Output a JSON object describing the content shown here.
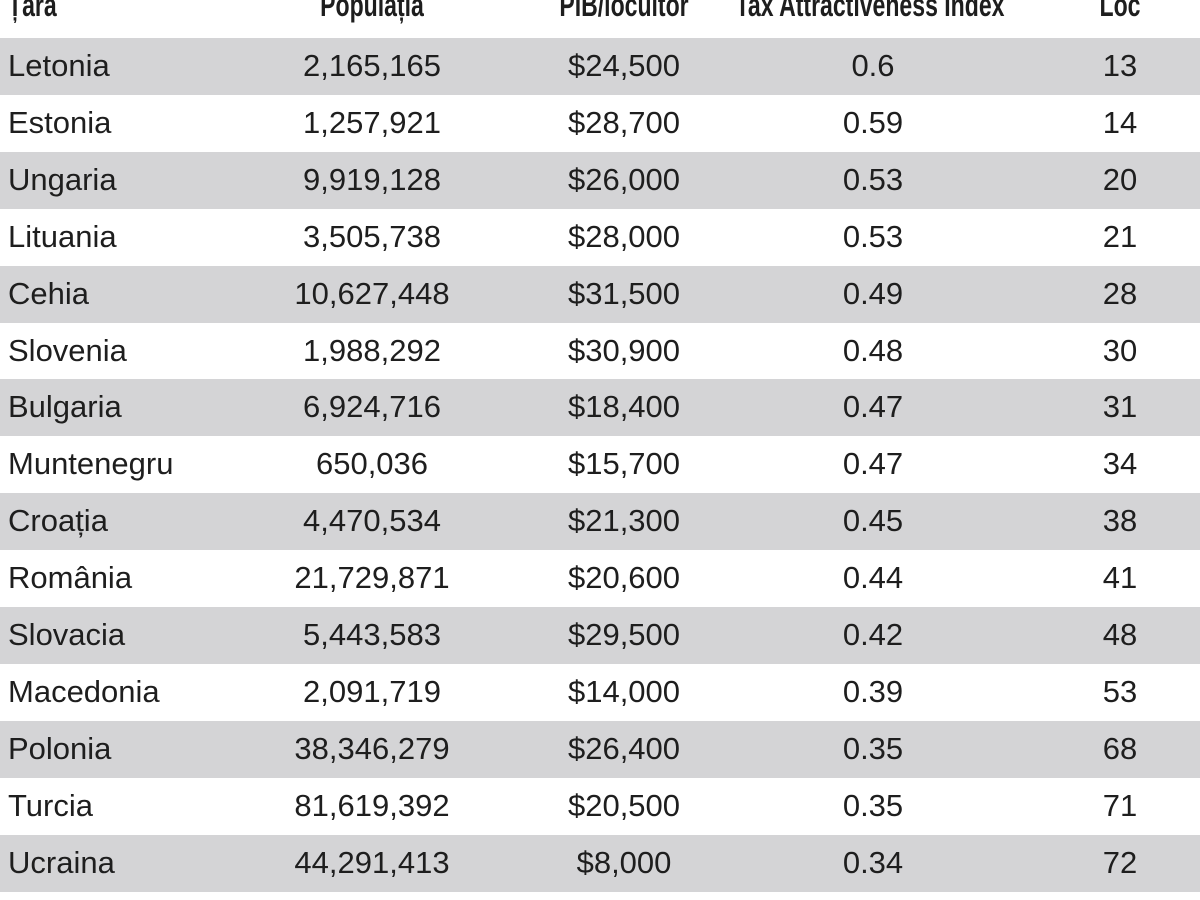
{
  "table": {
    "headers": [
      "Țara",
      "Populația",
      "PIB/locuitor",
      "Tax Attractiveness Index",
      "Loc"
    ],
    "rows": [
      [
        "Letonia",
        "2,165,165",
        "$24,500",
        "0.6",
        "13"
      ],
      [
        "Estonia",
        "1,257,921",
        "$28,700",
        "0.59",
        "14"
      ],
      [
        "Ungaria",
        "9,919,128",
        "$26,000",
        "0.53",
        "20"
      ],
      [
        "Lituania",
        "3,505,738",
        "$28,000",
        "0.53",
        "21"
      ],
      [
        "Cehia",
        "10,627,448",
        "$31,500",
        "0.49",
        "28"
      ],
      [
        "Slovenia",
        "1,988,292",
        "$30,900",
        "0.48",
        "30"
      ],
      [
        "Bulgaria",
        "6,924,716",
        "$18,400",
        "0.47",
        "31"
      ],
      [
        "Muntenegru",
        "650,036",
        "$15,700",
        "0.47",
        "34"
      ],
      [
        "Croația",
        "4,470,534",
        "$21,300",
        "0.45",
        "38"
      ],
      [
        "România",
        "21,729,871",
        "$20,600",
        "0.44",
        "41"
      ],
      [
        "Slovacia",
        "5,443,583",
        "$29,500",
        "0.42",
        "48"
      ],
      [
        "Macedonia",
        "2,091,719",
        "$14,000",
        "0.39",
        "53"
      ],
      [
        "Polonia",
        "38,346,279",
        "$26,400",
        "0.35",
        "68"
      ],
      [
        "Turcia",
        "81,619,392",
        "$20,500",
        "0.35",
        "71"
      ],
      [
        "Ucraina",
        "44,291,413",
        "$8,000",
        "0.34",
        "72"
      ]
    ]
  },
  "colors": {
    "stripe": "#d4d4d6",
    "text": "#1e1e1e"
  }
}
